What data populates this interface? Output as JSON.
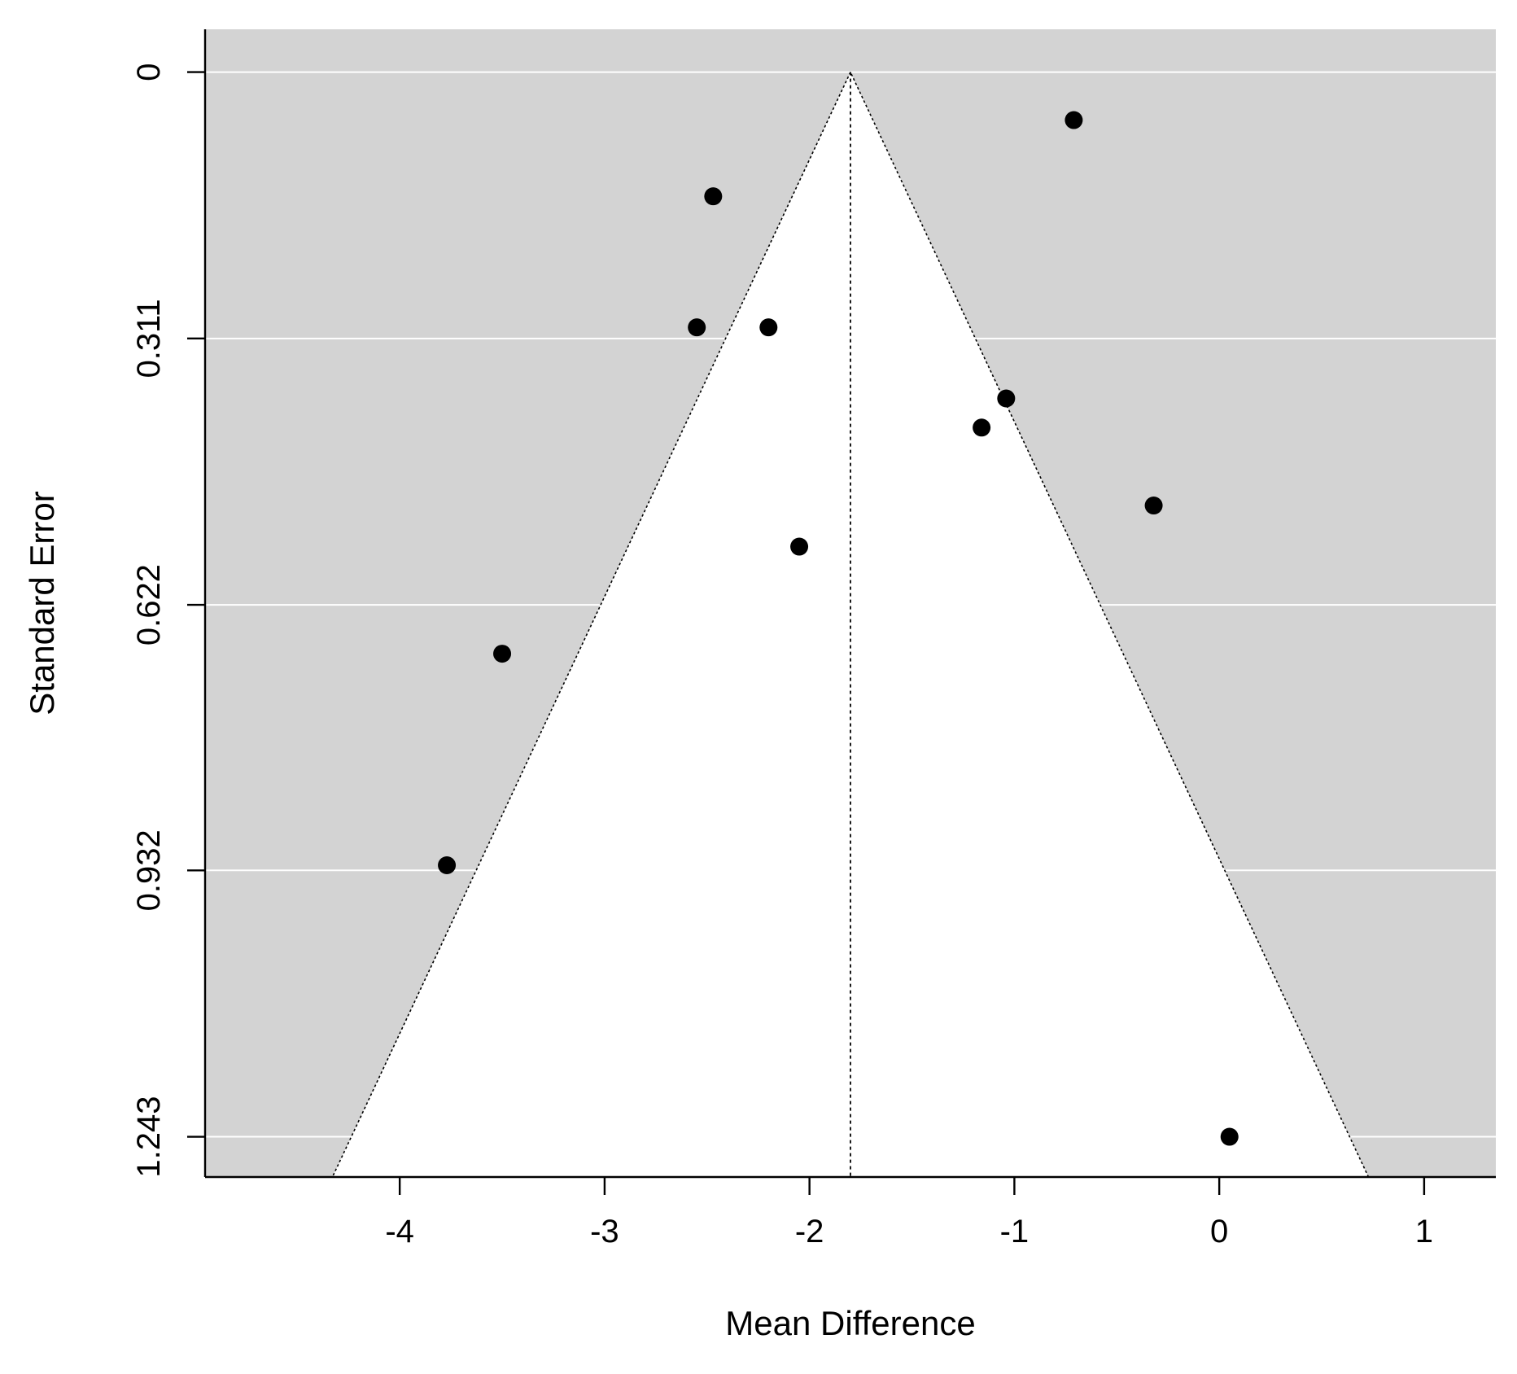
{
  "chart_data": {
    "type": "scatter",
    "subtype": "funnel-plot",
    "title": "",
    "xlabel": "Mean Difference",
    "ylabel": "Standard Error",
    "xlim": [
      -4.95,
      1.35
    ],
    "ylim": [
      1.29,
      -0.05
    ],
    "y_reversed": true,
    "x_ticks": [
      -4,
      -3,
      -2,
      -1,
      0,
      1
    ],
    "x_tick_labels": [
      "-4",
      "-3",
      "-2",
      "-1",
      "0",
      "1"
    ],
    "y_ticks": [
      0,
      0.311,
      0.622,
      0.932,
      1.243
    ],
    "y_tick_labels": [
      "0",
      "0.311",
      "0.622",
      "0.932",
      "1.243"
    ],
    "grid": "horizontal",
    "summary_estimate": -1.8,
    "funnel_z": 1.96,
    "funnel_max_se": 1.29,
    "colors": {
      "background": "#d3d3d3",
      "funnel_region": "#ffffff",
      "gridline": "#ffffff",
      "points": "#000000",
      "axis": "#000000"
    },
    "points": [
      {
        "x": -0.71,
        "y": 0.056
      },
      {
        "x": -2.47,
        "y": 0.145
      },
      {
        "x": -2.55,
        "y": 0.298
      },
      {
        "x": -2.2,
        "y": 0.298
      },
      {
        "x": -1.04,
        "y": 0.381
      },
      {
        "x": -1.16,
        "y": 0.415
      },
      {
        "x": -0.32,
        "y": 0.506
      },
      {
        "x": -2.05,
        "y": 0.554
      },
      {
        "x": -3.5,
        "y": 0.679
      },
      {
        "x": -3.77,
        "y": 0.926
      },
      {
        "x": 0.05,
        "y": 1.243
      }
    ]
  }
}
